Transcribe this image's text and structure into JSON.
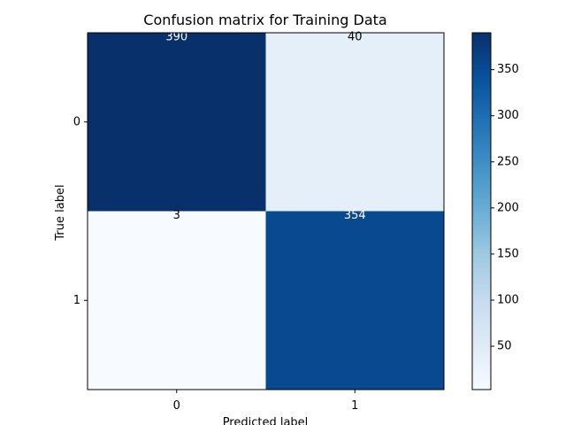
{
  "chart_data": {
    "type": "heatmap",
    "title": "Confusion matrix for Training Data",
    "xlabel": "Predicted label",
    "ylabel": "True label",
    "x_categories": [
      "0",
      "1"
    ],
    "y_categories": [
      "0",
      "1"
    ],
    "values": [
      [
        390,
        40
      ],
      [
        3,
        354
      ]
    ],
    "colormap": "Blues",
    "colorbar": {
      "min": 3,
      "max": 390,
      "ticks": [
        50,
        100,
        150,
        200,
        250,
        300,
        350
      ],
      "tick_labels": [
        "50",
        "100",
        "150",
        "200",
        "250",
        "300",
        "350"
      ]
    },
    "text_color_dark_cells": "#ffffff",
    "text_color_light_cells": "#000000",
    "grid": false
  }
}
